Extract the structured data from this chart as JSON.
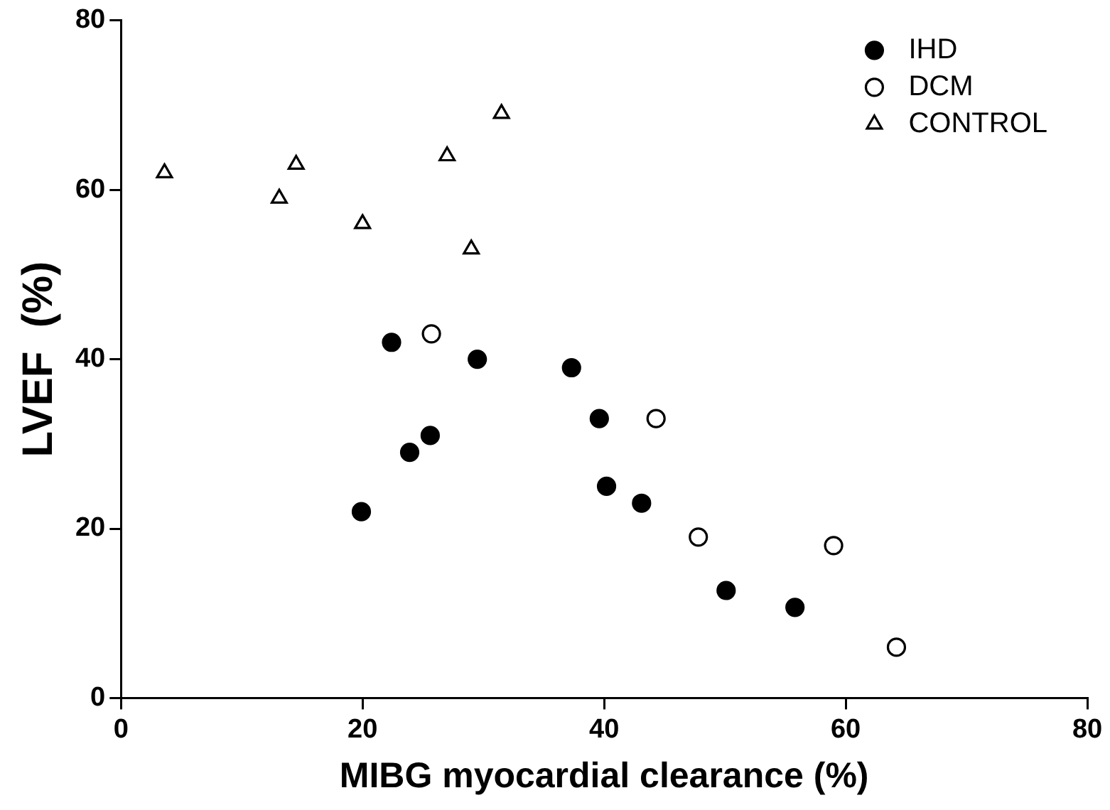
{
  "chart_data": {
    "type": "scatter",
    "xlabel": "MIBG myocardial clearance (%)",
    "ylabel": "LVEF  (%)",
    "xlim": [
      0,
      80
    ],
    "xticks": [
      0,
      20,
      40,
      60,
      80
    ],
    "ylim": [
      0,
      80
    ],
    "yticks": [
      0,
      20,
      40,
      60,
      80
    ],
    "grid": false,
    "legend": "top right",
    "series": [
      {
        "name": "IHD",
        "color": "#000000",
        "marker": "circle",
        "x": [
          22.4,
          23.9,
          25.6,
          19.9,
          29.5,
          37.3,
          39.6,
          40.2,
          43.1,
          50.1,
          55.8
        ],
        "values": [
          42,
          29,
          31,
          22,
          40,
          39,
          33,
          25,
          23,
          12.7,
          10.7
        ]
      },
      {
        "name": "DCM",
        "color": "#000000",
        "marker": "circle-open",
        "x": [
          25.7,
          44.3,
          47.8,
          59,
          64.2
        ],
        "values": [
          43,
          33,
          19,
          18,
          6
        ]
      },
      {
        "name": "CONTROL",
        "color": "#000000",
        "marker": "triangle-open",
        "x": [
          3.6,
          13.1,
          14.5,
          20,
          27,
          29,
          31.5
        ],
        "values": [
          62,
          59,
          63,
          56,
          64,
          53,
          69
        ]
      }
    ]
  }
}
